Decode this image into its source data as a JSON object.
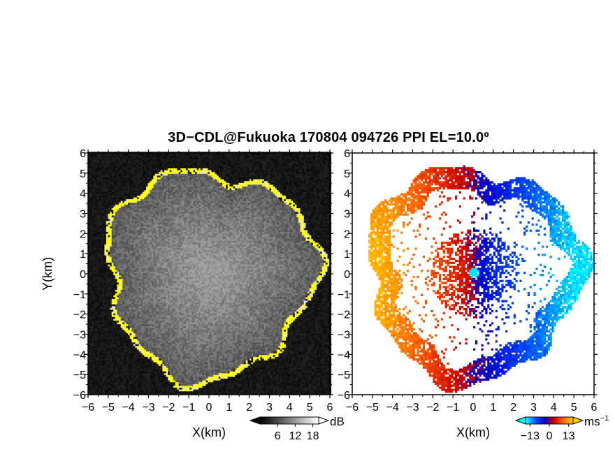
{
  "page": {
    "title": "3D−CDL@Fukuoka 170804 094726 PPI EL=10.0º"
  },
  "chart_data": [
    {
      "type": "heatmap",
      "panel": "left",
      "xlabel": "X(km)",
      "ylabel": "Y(km)",
      "xlim": [
        -6,
        6
      ],
      "ylim": [
        -6,
        6
      ],
      "x_ticks": [
        "−6",
        "−5",
        "−4",
        "−3",
        "−2",
        "−1",
        "0",
        "1",
        "2",
        "3",
        "4",
        "5",
        "6"
      ],
      "y_ticks": [
        "−6",
        "−5",
        "−4",
        "−3",
        "−2",
        "−1",
        "0",
        "1",
        "2",
        "3",
        "4",
        "5",
        "6"
      ],
      "colorbar": {
        "unit": "dB",
        "tick_labels": [
          "6",
          "12",
          "18"
        ],
        "range": [
          0,
          20
        ],
        "colors": [
          "#000000",
          "#ffffff"
        ]
      },
      "features": {
        "echo_radius_km": 5.0,
        "high_signal_rim_color": "#ffff00"
      }
    },
    {
      "type": "heatmap",
      "panel": "right",
      "xlabel": "X(km)",
      "xlim": [
        -6,
        6
      ],
      "ylim": [
        -6,
        6
      ],
      "x_ticks": [
        "−6",
        "−5",
        "−4",
        "−3",
        "−2",
        "−1",
        "0",
        "1",
        "2",
        "3",
        "4",
        "5",
        "6"
      ],
      "y_ticks": [
        "−6",
        "−5",
        "−4",
        "−3",
        "−2",
        "−1",
        "0",
        "1",
        "2",
        "3",
        "4",
        "5",
        "6"
      ],
      "colorbar": {
        "unit": "ms",
        "unit_exp": "−1",
        "tick_labels": [
          "−13",
          "0",
          "13"
        ],
        "range": [
          -16,
          16
        ],
        "colors": [
          "#00ffff",
          "#0055ff",
          "#0000cc",
          "#cc0000",
          "#ff6600",
          "#ffcc00"
        ]
      },
      "features": {
        "echo_radius_km": 5.0
      }
    }
  ]
}
